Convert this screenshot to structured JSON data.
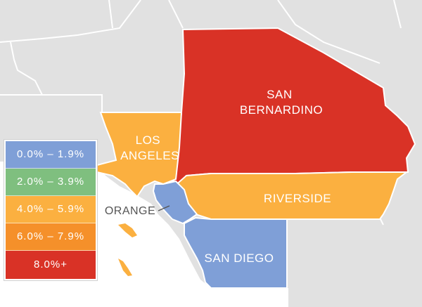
{
  "map": {
    "background_color": "#e1e1e1",
    "border_color": "#ffffff",
    "counties": [
      {
        "key": "san_bernardino",
        "lines": [
          "SAN",
          "BERNARDINO"
        ],
        "color": "#d93226"
      },
      {
        "key": "los_angeles",
        "lines": [
          "LOS",
          "ANGELES"
        ],
        "color": "#fbb040"
      },
      {
        "key": "riverside",
        "lines": [
          "RIVERSIDE"
        ],
        "color": "#fbb040"
      },
      {
        "key": "orange",
        "lines": [
          "ORANGE"
        ],
        "color": "#7f9fd7"
      },
      {
        "key": "san_diego",
        "lines": [
          "SAN DIEGO"
        ],
        "color": "#7f9fd7"
      }
    ]
  },
  "legend": {
    "items": [
      {
        "label": "0.0% – 1.9%",
        "color": "#7f9fd7"
      },
      {
        "label": "2.0% – 3.9%",
        "color": "#7fbf7f"
      },
      {
        "label": "4.0% – 5.9%",
        "color": "#fbb040"
      },
      {
        "label": "6.0% – 7.9%",
        "color": "#f5902a"
      },
      {
        "label": "8.0%+",
        "color": "#d93226"
      }
    ]
  }
}
